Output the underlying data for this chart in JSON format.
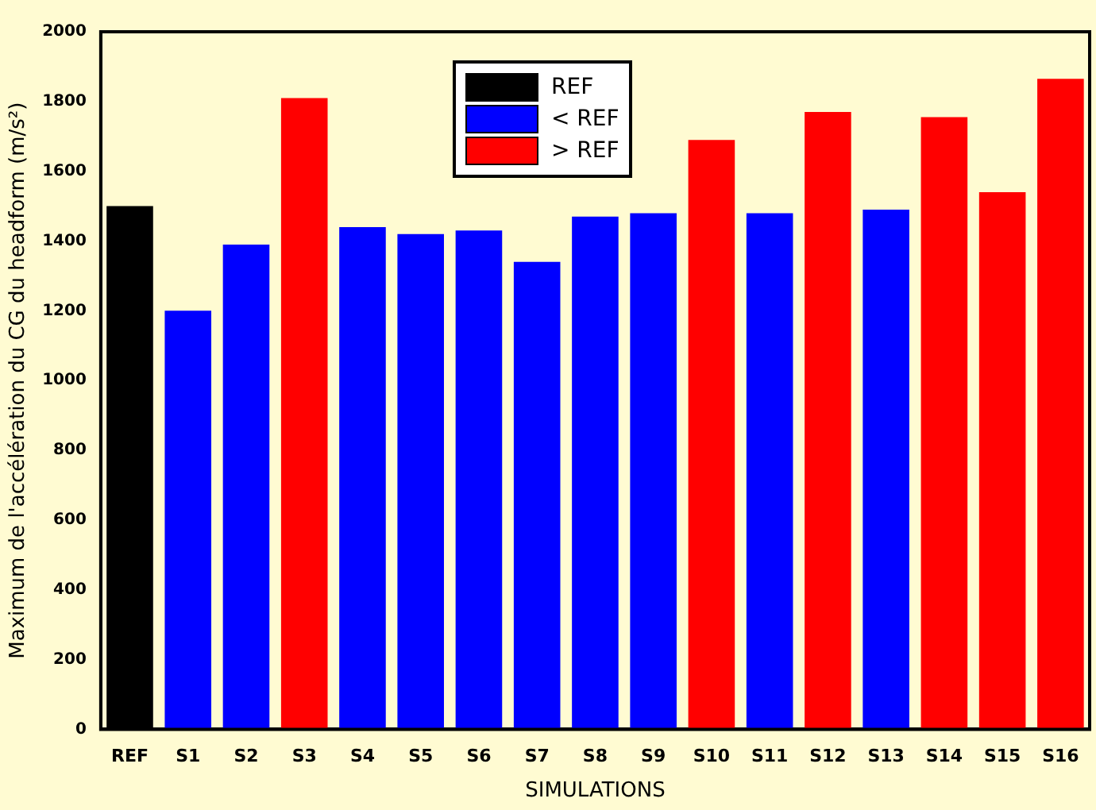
{
  "chart_data": {
    "type": "bar",
    "xlabel": "SIMULATIONS",
    "ylabel": "Maximum de l'accélération du CG du headform (m/s²)",
    "categories": [
      "REF",
      "S1",
      "S2",
      "S3",
      "S4",
      "S5",
      "S6",
      "S7",
      "S8",
      "S9",
      "S10",
      "S11",
      "S12",
      "S13",
      "S14",
      "S15",
      "S16"
    ],
    "series": [
      {
        "name": "REF",
        "color": "#000000",
        "values": [
          1500,
          null,
          null,
          null,
          null,
          null,
          null,
          null,
          null,
          null,
          null,
          null,
          null,
          null,
          null,
          null,
          null
        ]
      },
      {
        "name": "< REF",
        "color": "#0000ff",
        "values": [
          null,
          1200,
          1390,
          null,
          1440,
          1420,
          1430,
          1340,
          1470,
          1480,
          null,
          1480,
          null,
          1490,
          null,
          null,
          null
        ]
      },
      {
        "name": "> REF",
        "color": "#ff0000",
        "values": [
          null,
          null,
          null,
          1810,
          null,
          null,
          null,
          null,
          null,
          null,
          1690,
          null,
          1770,
          null,
          1755,
          1540,
          1865
        ]
      }
    ],
    "ylim": [
      0,
      2000
    ],
    "yticks": [
      0,
      200,
      400,
      600,
      800,
      1000,
      1200,
      1400,
      1600,
      1800,
      2000
    ],
    "grid": false,
    "legend": "top"
  }
}
